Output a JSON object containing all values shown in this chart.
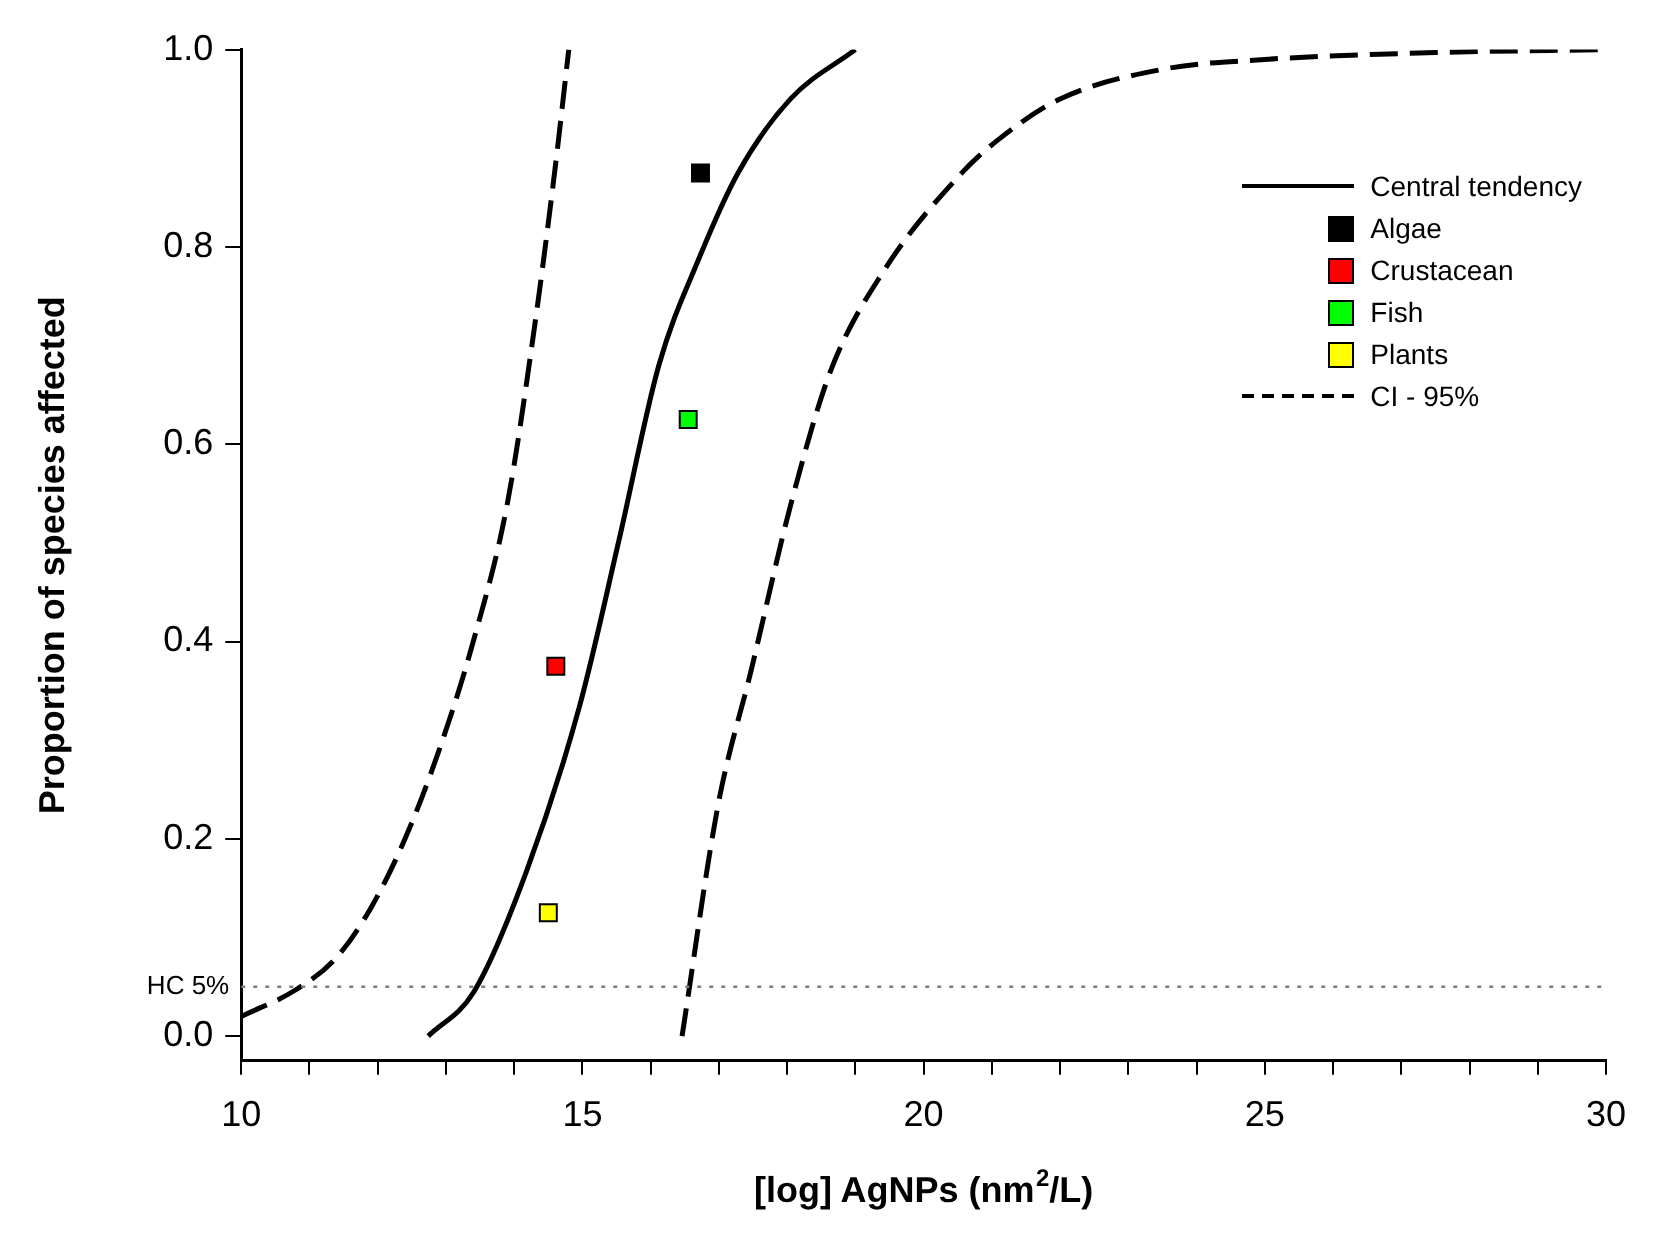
{
  "chart_data": {
    "type": "line",
    "xlabel": "[log] AgNPs (nm$^{2}$/L)",
    "ylabel": "Proportion of species affected",
    "xlim": [
      10,
      30
    ],
    "ylim": [
      -0.025,
      1.0
    ],
    "xticks": [
      10,
      {
        "value": 11,
        "label": null
      },
      {
        "value": 12,
        "label": null
      },
      {
        "value": 13,
        "label": null
      },
      {
        "value": 14,
        "label": null
      },
      15,
      {
        "value": 16,
        "label": null
      },
      {
        "value": 17,
        "label": null
      },
      {
        "value": 18,
        "label": null
      },
      {
        "value": 19,
        "label": null
      },
      20,
      {
        "value": 21,
        "label": null
      },
      {
        "value": 22,
        "label": null
      },
      {
        "value": 23,
        "label": null
      },
      {
        "value": 24,
        "label": null
      },
      25,
      {
        "value": 26,
        "label": null
      },
      {
        "value": 27,
        "label": null
      },
      {
        "value": 28,
        "label": null
      },
      {
        "value": 29,
        "label": null
      },
      30
    ],
    "yticks": [
      {
        "value": 0,
        "label": "0.0"
      },
      {
        "value": 0.2,
        "label": "0.2"
      },
      {
        "value": 0.4,
        "label": "0.4"
      },
      {
        "value": 0.6,
        "label": "0.6"
      },
      {
        "value": 0.8,
        "label": "0.8"
      },
      {
        "value": 1.0,
        "label": "1.0"
      }
    ],
    "grid": false,
    "legend": "top right",
    "ref_lines": [
      {
        "axis": "y",
        "value": 0.05,
        "label": "HC 5%",
        "color": "#808080",
        "line_style": "dotted"
      }
    ],
    "series": [
      {
        "name": "Central tendency",
        "type": "line",
        "color": "#000000",
        "line_style": "solid",
        "marker": "none",
        "x": [
          12.74,
          13.41,
          14.18,
          14.96,
          15.54,
          16.12,
          16.7,
          17.28,
          18.05,
          19.0
        ],
        "values": [
          0.0,
          0.045,
          0.167,
          0.335,
          0.504,
          0.68,
          0.787,
          0.875,
          0.95,
          1.0
        ]
      },
      {
        "name": "Algae",
        "type": "scatter",
        "color": "#000000",
        "marker": "square",
        "x": [
          16.73
        ],
        "values": [
          0.875
        ]
      },
      {
        "name": "Crustacean",
        "type": "scatter",
        "color": "#ff0000",
        "marker": "square",
        "x": [
          14.61
        ],
        "values": [
          0.375
        ]
      },
      {
        "name": "Fish",
        "type": "scatter",
        "color": "#00ff00",
        "marker": "square",
        "x": [
          16.55
        ],
        "values": [
          0.625
        ]
      },
      {
        "name": "Plants",
        "type": "scatter",
        "color": "#ffff00",
        "marker": "square",
        "x": [
          14.5
        ],
        "values": [
          0.125
        ]
      },
      {
        "name": "CI - 95%",
        "type": "line",
        "color": "#000000",
        "line_style": "dashed",
        "marker": "none",
        "x": [
          10.0,
          10.8,
          11.4,
          11.9,
          12.4,
          12.9,
          13.4,
          13.9,
          14.3,
          14.6,
          14.8
        ],
        "values": [
          0.02,
          0.047,
          0.08,
          0.13,
          0.2,
          0.29,
          0.4,
          0.54,
          0.72,
          0.88,
          1.0
        ]
      },
      {
        "type": "line",
        "color": "#000000",
        "line_style": "dashed",
        "marker": "none",
        "x": [
          16.46,
          16.99,
          17.47,
          18.05,
          18.63,
          19.4,
          20.56,
          21.1,
          22.0,
          23.5,
          25.0,
          27.5,
          30.0
        ],
        "values": [
          0.0,
          0.235,
          0.37,
          0.538,
          0.673,
          0.774,
          0.875,
          0.909,
          0.95,
          0.98,
          0.99,
          0.997,
          1.0
        ]
      }
    ]
  }
}
